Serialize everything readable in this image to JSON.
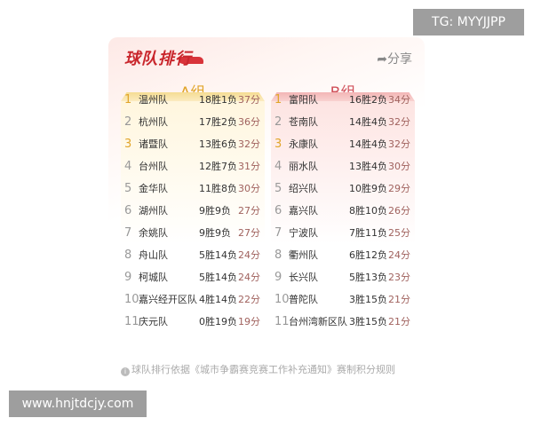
{
  "watermarks": {
    "top": "TG: MYYJJPP",
    "bottom": "www.hnjtdcjy.com"
  },
  "card": {
    "title": "球队排行",
    "share_label": "分享",
    "note": "球队排行依据《城市争霸赛竞赛工作补充通知》赛制积分规则"
  },
  "groups": [
    {
      "label": "A组",
      "rows": [
        [
          "1",
          "温州队",
          "18胜1负",
          "37分"
        ],
        [
          "2",
          "杭州队",
          "17胜2负",
          "36分"
        ],
        [
          "3",
          "诸暨队",
          "13胜6负",
          "32分"
        ],
        [
          "4",
          "台州队",
          "12胜7负",
          "31分"
        ],
        [
          "5",
          "金华队",
          "11胜8负",
          "30分"
        ],
        [
          "6",
          "湖州队",
          "9胜9负",
          "27分"
        ],
        [
          "7",
          "余姚队",
          "9胜9负",
          "27分"
        ],
        [
          "8",
          "舟山队",
          "5胜14负",
          "24分"
        ],
        [
          "9",
          "柯城队",
          "5胜14负",
          "24分"
        ],
        [
          "10",
          "嘉兴经开区队",
          "4胜14负",
          "22分"
        ],
        [
          "11",
          "庆元队",
          "0胜19负",
          "19分"
        ]
      ]
    },
    {
      "label": "B组",
      "rows": [
        [
          "1",
          "富阳队",
          "16胜2负",
          "34分"
        ],
        [
          "2",
          "苍南队",
          "14胜4负",
          "32分"
        ],
        [
          "3",
          "永康队",
          "14胜4负",
          "32分"
        ],
        [
          "4",
          "丽水队",
          "13胜4负",
          "30分"
        ],
        [
          "5",
          "绍兴队",
          "10胜9负",
          "29分"
        ],
        [
          "6",
          "嘉兴队",
          "8胜10负",
          "26分"
        ],
        [
          "7",
          "宁波队",
          "7胜11负",
          "25分"
        ],
        [
          "8",
          "衢州队",
          "6胜12负",
          "24分"
        ],
        [
          "9",
          "长兴队",
          "5胜13负",
          "23分"
        ],
        [
          "10",
          "普陀队",
          "3胜15负",
          "21分"
        ],
        [
          "11",
          "台州湾新区队",
          "3胜15负",
          "21分"
        ]
      ]
    }
  ]
}
